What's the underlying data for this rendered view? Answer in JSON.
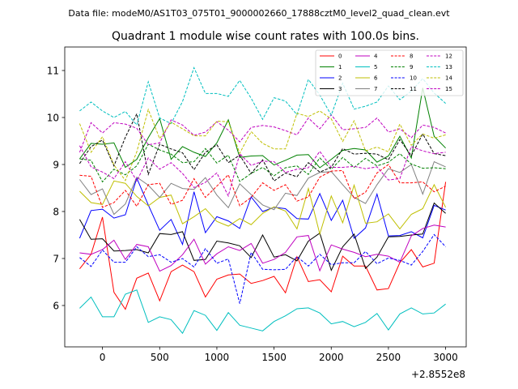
{
  "header": {
    "data_file": "Data file: modeM0/AS1T03_075T01_9000002660_17888cztM0_level2_quad_clean.evt"
  },
  "chart_data": {
    "type": "line",
    "title": "Quadrant 1 module wise count rates with 100.0s bins.",
    "xlabel": "",
    "ylabel": "",
    "x_offset_label": "+2.8552e8",
    "xlim": [
      -330,
      3180
    ],
    "ylim": [
      5.12,
      11.5
    ],
    "x_ticks": [
      0,
      500,
      1000,
      1500,
      2000,
      2500,
      3000
    ],
    "x_tick_labels": [
      "0",
      "500",
      "1000",
      "1500",
      "2000",
      "2500",
      "3000"
    ],
    "y_ticks": [
      6,
      7,
      8,
      9,
      10,
      11
    ],
    "y_tick_labels": [
      "6",
      "7",
      "8",
      "9",
      "10",
      "11"
    ],
    "grid": false,
    "legend_position": "top-right",
    "x": [
      -200,
      -100,
      0,
      100,
      200,
      300,
      400,
      500,
      600,
      700,
      800,
      900,
      1000,
      1100,
      1200,
      1300,
      1400,
      1500,
      1600,
      1700,
      1800,
      1900,
      2000,
      2100,
      2200,
      2300,
      2400,
      2500,
      2600,
      2700,
      2800,
      2900,
      3000
    ],
    "series": [
      {
        "name": "0",
        "color": "#ff0000",
        "dash": "solid",
        "values": [
          6.78,
          7.09,
          7.88,
          6.28,
          5.92,
          6.58,
          6.69,
          6.1,
          6.72,
          6.86,
          6.72,
          6.18,
          6.56,
          6.65,
          6.67,
          6.47,
          6.53,
          6.62,
          6.27,
          7.04,
          6.51,
          6.55,
          6.29,
          7.05,
          6.84,
          6.84,
          6.33,
          6.36,
          6.91,
          7.19,
          6.82,
          6.9,
          8.63
        ]
      },
      {
        "name": "1",
        "color": "#008000",
        "dash": "solid",
        "values": [
          9.12,
          9.45,
          9.43,
          9.46,
          8.94,
          9.11,
          9.57,
          9.98,
          9.11,
          9.38,
          9.26,
          9.17,
          9.46,
          9.95,
          9.15,
          9.18,
          9.19,
          8.99,
          9.09,
          9.2,
          9.21,
          8.93,
          9.11,
          9.3,
          9.34,
          9.31,
          9.05,
          9.18,
          9.6,
          9.14,
          10.63,
          9.6,
          9.35
        ]
      },
      {
        "name": "2",
        "color": "#0000ff",
        "dash": "solid",
        "values": [
          7.43,
          8.02,
          8.05,
          7.86,
          7.93,
          8.71,
          8.14,
          7.6,
          7.83,
          7.3,
          8.42,
          7.55,
          7.89,
          7.8,
          7.64,
          8.31,
          8.0,
          8.09,
          8.06,
          7.85,
          7.84,
          8.38,
          7.81,
          8.24,
          7.43,
          7.65,
          8.37,
          7.48,
          7.49,
          7.57,
          7.44,
          8.13,
          8.03
        ]
      },
      {
        "name": "3",
        "color": "#000000",
        "dash": "solid",
        "values": [
          7.83,
          7.41,
          7.42,
          7.16,
          7.17,
          7.19,
          7.12,
          7.53,
          7.51,
          7.57,
          6.96,
          6.98,
          7.37,
          7.33,
          7.27,
          7.02,
          7.5,
          7.03,
          7.08,
          6.95,
          7.37,
          7.54,
          6.75,
          7.25,
          7.52,
          6.79,
          7.03,
          7.46,
          7.47,
          7.5,
          7.52,
          8.18,
          7.96
        ]
      },
      {
        "name": "4",
        "color": "#bf00bf",
        "dash": "solid",
        "values": [
          7.12,
          7.09,
          7.19,
          7.39,
          6.98,
          7.3,
          7.25,
          6.73,
          6.85,
          7.08,
          7.41,
          6.88,
          7.1,
          7.25,
          7.17,
          7.32,
          6.9,
          6.98,
          7.13,
          7.46,
          7.49,
          6.74,
          7.29,
          7.2,
          7.13,
          7.04,
          7.09,
          7.05,
          6.92,
          7.48,
          7.64,
          7.71,
          7.67
        ]
      },
      {
        "name": "5",
        "color": "#00bfbf",
        "dash": "solid",
        "values": [
          5.94,
          6.18,
          5.76,
          5.76,
          6.24,
          6.33,
          5.64,
          5.76,
          5.7,
          5.41,
          5.89,
          5.79,
          5.47,
          5.85,
          5.58,
          5.52,
          5.46,
          5.66,
          5.78,
          5.93,
          5.95,
          5.84,
          5.61,
          5.66,
          5.55,
          5.64,
          5.83,
          5.48,
          5.82,
          5.95,
          5.82,
          5.84,
          6.03
        ]
      },
      {
        "name": "6",
        "color": "#bfbf00",
        "dash": "solid",
        "values": [
          8.43,
          8.19,
          8.15,
          8.65,
          8.6,
          8.32,
          8.12,
          8.3,
          8.35,
          7.74,
          7.89,
          8.06,
          7.79,
          7.69,
          7.85,
          7.72,
          7.96,
          8.1,
          8.01,
          7.63,
          8.49,
          7.52,
          8.33,
          7.76,
          8.56,
          7.75,
          7.78,
          7.95,
          7.63,
          7.94,
          8.06,
          8.57,
          8.09
        ]
      },
      {
        "name": "7",
        "color": "#808080",
        "dash": "solid",
        "values": [
          8.68,
          8.36,
          8.48,
          7.94,
          8.16,
          8.73,
          8.56,
          8.3,
          8.6,
          8.49,
          8.47,
          8.72,
          8.35,
          8.08,
          8.59,
          8.36,
          8.14,
          8.04,
          8.39,
          8.34,
          8.71,
          8.83,
          8.85,
          8.57,
          8.3,
          8.17,
          8.57,
          8.91,
          8.83,
          9.0,
          8.37,
          9.06,
          8.95
        ]
      },
      {
        "name": "8",
        "color": "#ff0000",
        "dash": "dashed",
        "values": [
          8.77,
          8.75,
          8.09,
          8.19,
          8.45,
          8.11,
          8.57,
          8.6,
          8.15,
          8.24,
          8.7,
          8.3,
          8.54,
          8.78,
          8.12,
          8.3,
          8.61,
          8.45,
          8.57,
          8.22,
          8.31,
          8.73,
          8.86,
          8.87,
          8.27,
          8.41,
          8.82,
          9.0,
          8.61,
          8.61,
          8.63,
          8.42,
          8.54
        ]
      },
      {
        "name": "9",
        "color": "#008000",
        "dash": "dashed",
        "values": [
          9.12,
          9.09,
          8.63,
          8.9,
          8.78,
          8.97,
          9.43,
          9.31,
          9.22,
          9.04,
          9.06,
          9.34,
          9.03,
          9.2,
          8.64,
          8.81,
          8.94,
          8.76,
          8.93,
          8.97,
          8.79,
          9.14,
          8.9,
          9.15,
          8.94,
          9.13,
          8.97,
          9.05,
          9.23,
          9.01,
          8.92,
          8.93,
          8.91
        ]
      },
      {
        "name": "10",
        "color": "#0000ff",
        "dash": "dashed",
        "values": [
          7.02,
          6.83,
          7.18,
          6.92,
          6.92,
          7.25,
          7.04,
          7.08,
          6.92,
          7.0,
          6.82,
          7.21,
          6.9,
          6.99,
          6.04,
          7.13,
          6.77,
          6.76,
          6.77,
          7.04,
          6.84,
          7.09,
          6.87,
          6.91,
          6.91,
          7.15,
          6.89,
          7.01,
          6.96,
          6.86,
          7.15,
          7.51,
          7.25
        ]
      },
      {
        "name": "11",
        "color": "#000000",
        "dash": "dashed",
        "values": [
          9.02,
          9.38,
          9.52,
          8.97,
          9.58,
          10.08,
          8.79,
          9.43,
          9.33,
          9.25,
          8.89,
          9.26,
          9.42,
          9.04,
          9.2,
          8.81,
          9.1,
          8.65,
          8.82,
          8.74,
          9.04,
          8.84,
          8.94,
          9.34,
          9.22,
          9.24,
          9.22,
          9.1,
          9.53,
          9.19,
          9.65,
          9.23,
          9.19
        ]
      },
      {
        "name": "12",
        "color": "#bf00bf",
        "dash": "dashed",
        "values": [
          9.26,
          9.89,
          9.67,
          9.89,
          9.86,
          9.77,
          9.42,
          9.46,
          9.95,
          9.84,
          9.62,
          9.69,
          9.91,
          9.73,
          9.48,
          9.79,
          9.83,
          9.8,
          9.72,
          9.63,
          9.99,
          9.76,
          10.06,
          9.74,
          9.76,
          9.79,
          9.99,
          9.69,
          9.76,
          9.57,
          9.84,
          9.79,
          9.67
        ]
      },
      {
        "name": "13",
        "color": "#00bfbf",
        "dash": "dashed",
        "values": [
          10.14,
          10.33,
          10.14,
          10.0,
          10.13,
          9.84,
          10.76,
          9.99,
          9.87,
          10.34,
          11.06,
          10.51,
          10.51,
          10.45,
          10.79,
          10.41,
          9.96,
          10.42,
          10.35,
          10.06,
          10.81,
          10.48,
          10.05,
          10.73,
          10.18,
          10.24,
          10.33,
          10.67,
          10.38,
          10.56,
          10.83,
          10.52,
          10.3
        ]
      },
      {
        "name": "14",
        "color": "#bfbf00",
        "dash": "dashed",
        "values": [
          9.87,
          9.26,
          9.59,
          8.99,
          8.66,
          9.27,
          10.17,
          9.55,
          9.9,
          9.76,
          9.61,
          9.61,
          9.92,
          9.91,
          9.24,
          9.7,
          9.45,
          9.33,
          9.33,
          10.09,
          10.02,
          10.14,
          9.97,
          9.49,
          9.93,
          9.29,
          9.37,
          9.27,
          9.86,
          9.41,
          9.65,
          9.56,
          9.63
        ]
      },
      {
        "name": "15",
        "color": "#bf00bf",
        "dash": "dashed",
        "values": [
          9.4,
          8.95,
          8.84,
          8.7,
          9.06,
          8.65,
          9.14,
          8.9,
          9.04,
          8.81,
          8.51,
          8.62,
          8.82,
          8.33,
          9.23,
          8.98,
          9.07,
          9.06,
          8.83,
          8.9,
          8.93,
          9.28,
          8.94,
          8.94,
          8.96,
          8.91,
          8.95,
          8.67,
          8.7,
          9.38,
          9.29,
          9.23,
          9.26
        ]
      }
    ]
  }
}
